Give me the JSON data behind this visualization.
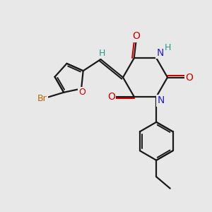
{
  "bg_color": "#e8e8e8",
  "bond_color": "#1a1a1a",
  "N_color": "#2222cc",
  "O_color": "#cc0000",
  "H_color": "#2a9a8a",
  "Br_color": "#bb6600",
  "figsize": [
    3.0,
    3.0
  ],
  "dpi": 100,
  "xlim": [
    0,
    10
  ],
  "ylim": [
    0,
    10
  ]
}
